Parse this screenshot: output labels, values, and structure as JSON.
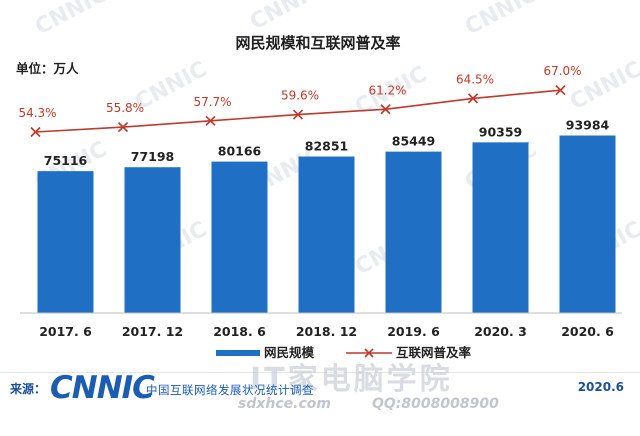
{
  "chart_data": {
    "type": "bar",
    "title": "网民规模和互联网普及率",
    "ylabel": "单位：万人",
    "categories": [
      "2017. 6",
      "2017. 12",
      "2018. 6",
      "2018. 12",
      "2019. 6",
      "2020. 3",
      "2020. 6"
    ],
    "series": [
      {
        "name": "网民规模",
        "type": "bar",
        "color": "#1f6fc5",
        "values": [
          75116,
          77198,
          80166,
          82851,
          85449,
          90359,
          93984
        ],
        "labels": [
          "75116",
          "77198",
          "80166",
          "82851",
          "85449",
          "90359",
          "93984"
        ]
      },
      {
        "name": "互联网普及率",
        "type": "line",
        "color": "#c0392b",
        "marker": "x",
        "values": [
          54.3,
          55.8,
          57.7,
          59.6,
          61.2,
          64.5,
          67.0
        ],
        "labels": [
          "54.3%",
          "55.8%",
          "57.7%",
          "59.6%",
          "61.2%",
          "64.5%",
          "67.0%"
        ]
      }
    ],
    "legend_position": "bottom",
    "grid": false
  },
  "footer": {
    "source_label": "来源：",
    "logo": "CNNIC",
    "org": "中国互联网络发展状况统计调查",
    "date": "2020.6"
  },
  "watermark": {
    "brand": "CNNIC",
    "cn_text": "IT家电脑学院",
    "site": "sdxhce.com",
    "qq": "QQ:8008008900"
  }
}
